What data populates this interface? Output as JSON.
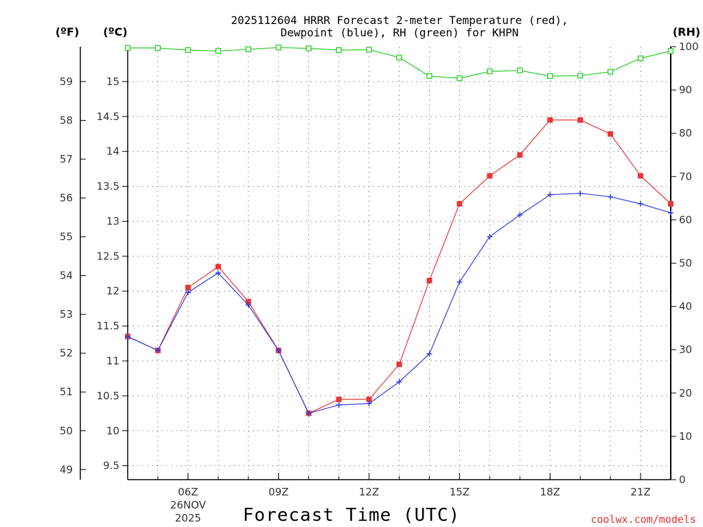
{
  "chart_data": {
    "type": "line",
    "title_line1": "2025112604 HRRR Forecast 2-meter Temperature (red),",
    "title_line2": "Dewpoint (blue), RH (green) for KHPN",
    "xlabel": "Forecast Time (UTC)",
    "credit": "coolwx.com/models",
    "units": {
      "fahrenheit": "(ºF)",
      "celsius": "(ºC)",
      "rh": "(RH)"
    },
    "x_hours": [
      4,
      5,
      6,
      7,
      8,
      9,
      10,
      11,
      12,
      13,
      14,
      15,
      16,
      17,
      18,
      19,
      20,
      21,
      22
    ],
    "xlim": [
      4,
      22
    ],
    "x_ticks": [
      {
        "hour": 6,
        "label": "06Z",
        "sub1": "26NOV",
        "sub2": "2025"
      },
      {
        "hour": 9,
        "label": "09Z"
      },
      {
        "hour": 12,
        "label": "12Z"
      },
      {
        "hour": 15,
        "label": "15Z"
      },
      {
        "hour": 18,
        "label": "18Z"
      },
      {
        "hour": 21,
        "label": "21Z"
      }
    ],
    "celsius_axis": {
      "range": [
        9.3,
        15.5
      ],
      "ticks": [
        "9.5",
        "10",
        "10.5",
        "11",
        "11.5",
        "12",
        "12.5",
        "13",
        "13.5",
        "14",
        "14.5",
        "15"
      ]
    },
    "fahrenheit_ticks": [
      "49",
      "50",
      "51",
      "52",
      "53",
      "54",
      "55",
      "56",
      "57",
      "58",
      "59"
    ],
    "rh_axis": {
      "range": [
        0,
        100
      ],
      "ticks": [
        "0",
        "10",
        "20",
        "30",
        "40",
        "50",
        "60",
        "70",
        "80",
        "90",
        "100"
      ]
    },
    "series": [
      {
        "name": "Temperature",
        "axis": "celsius",
        "color": "#e83535",
        "marker": "filled-square",
        "values": [
          11.35,
          11.15,
          12.05,
          12.35,
          11.85,
          11.15,
          10.25,
          10.45,
          10.45,
          10.95,
          12.15,
          13.25,
          13.65,
          13.95,
          14.45,
          14.45,
          14.25,
          13.65,
          13.25
        ]
      },
      {
        "name": "Dewpoint",
        "axis": "celsius",
        "color": "#2a3ee0",
        "marker": "plus",
        "values": [
          11.35,
          11.15,
          11.98,
          12.26,
          11.8,
          11.15,
          10.25,
          10.37,
          10.39,
          10.7,
          11.1,
          12.13,
          12.78,
          13.09,
          13.38,
          13.4,
          13.35,
          13.25,
          13.12
        ]
      },
      {
        "name": "Relative Humidity",
        "axis": "rh",
        "color": "#22cc22",
        "marker": "open-square",
        "values": [
          99.7,
          99.7,
          99.2,
          99.0,
          99.4,
          99.8,
          99.6,
          99.2,
          99.3,
          97.5,
          93.2,
          92.7,
          94.3,
          94.5,
          93.2,
          93.3,
          94.2,
          97.3,
          99.0
        ]
      }
    ]
  }
}
